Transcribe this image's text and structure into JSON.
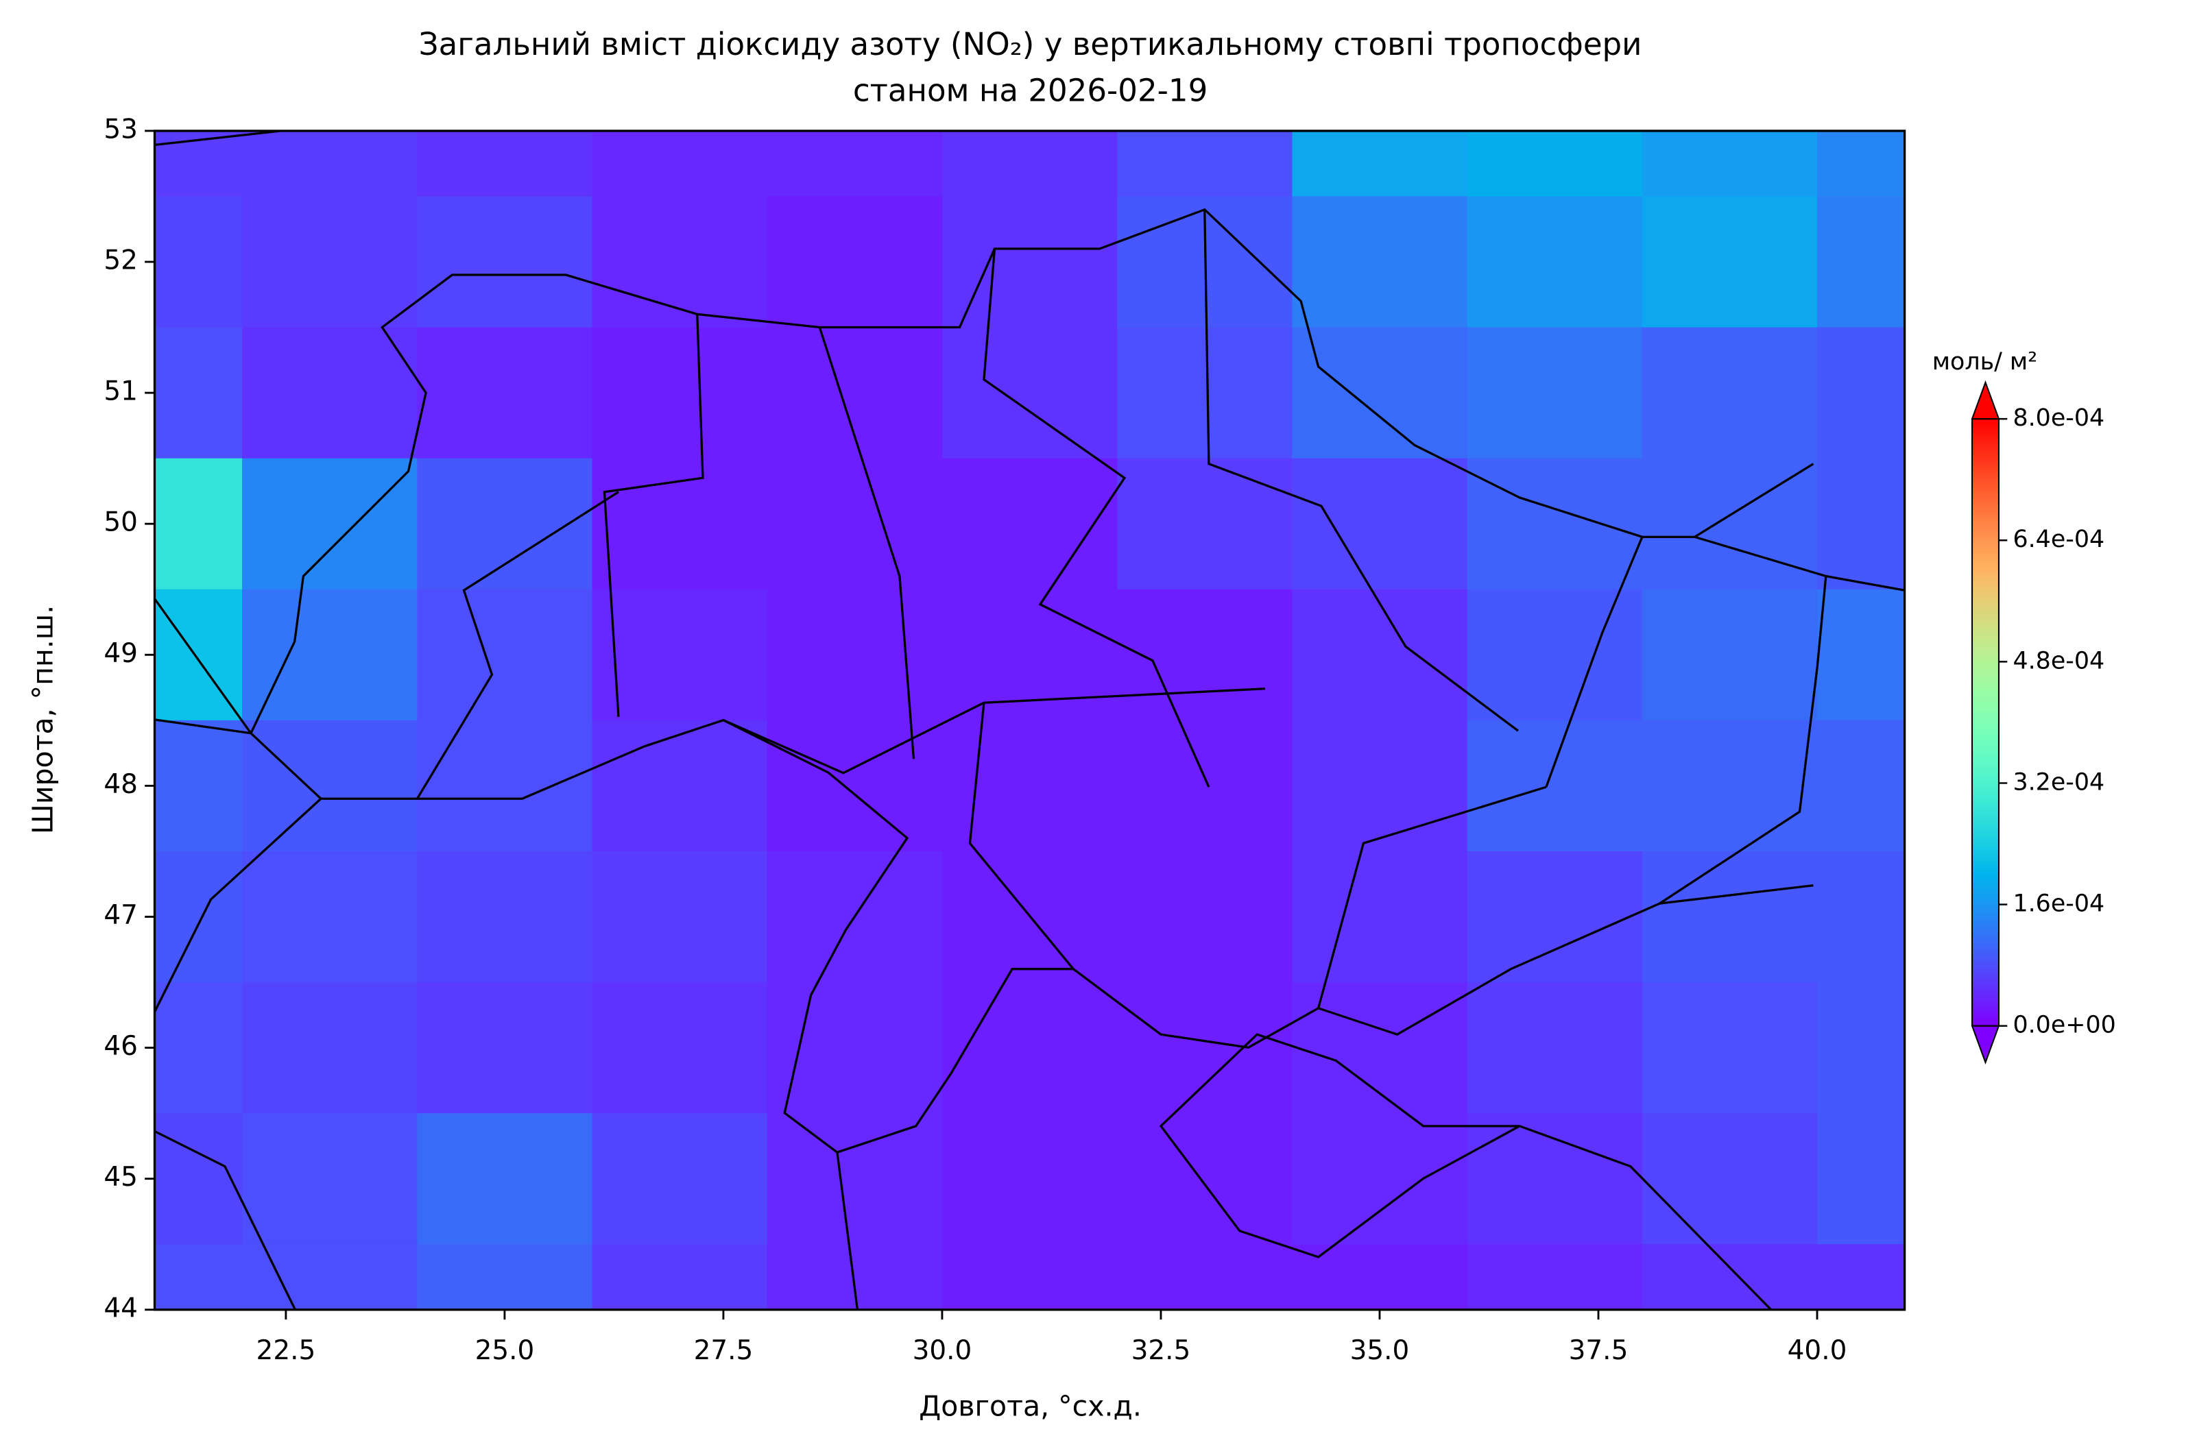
{
  "chart_data": {
    "type": "contour_map",
    "title": "Загальний вміст діоксиду азоту (NO₂) у вертикальному стовпі тропосфери",
    "subtitle": "станом на 2026-02-19",
    "x_label": "Довгота, °сх.д.",
    "y_label": "Широта, °пн.ш.",
    "xlim": [
      21,
      41
    ],
    "ylim": [
      44,
      53
    ],
    "xticks": [
      22.5,
      {
        "value": 25,
        "label": "25.0"
      },
      27.5,
      {
        "value": 30,
        "label": "30.0"
      },
      32.5,
      {
        "value": 35,
        "label": "35.0"
      },
      37.5,
      {
        "value": 40,
        "label": "40.0"
      }
    ],
    "yticks": [
      44,
      45,
      46,
      47,
      48,
      49,
      50,
      51,
      52,
      53
    ],
    "lons": [
      21,
      23,
      25,
      27,
      29,
      31,
      33,
      35,
      37,
      39,
      41
    ],
    "lats": [
      53,
      52,
      51,
      50,
      49,
      48,
      47,
      46,
      45,
      44
    ],
    "values": [
      [
        6e-05,
        6e-05,
        5e-05,
        4e-05,
        4e-05,
        5e-05,
        8e-05,
        0.00018,
        0.00019,
        0.00017,
        0.00014
      ],
      [
        7e-05,
        6e-05,
        7e-05,
        4e-05,
        3e-05,
        5e-05,
        9e-05,
        0.00013,
        0.00016,
        0.00018,
        0.00013
      ],
      [
        8e-05,
        5e-05,
        4e-05,
        3e-05,
        3e-05,
        5e-05,
        8e-05,
        0.00011,
        0.00012,
        0.0001,
        9e-05
      ],
      [
        0.00028,
        0.00014,
        9e-05,
        3e-05,
        3e-05,
        3e-05,
        6e-05,
        7e-05,
        0.0001,
        0.0001,
        9e-05
      ],
      [
        0.00022,
        0.00012,
        8e-05,
        4e-05,
        3e-05,
        3e-05,
        3e-05,
        5e-05,
        9e-05,
        0.00011,
        0.00012
      ],
      [
        0.0001,
        9e-05,
        8e-05,
        5e-05,
        3e-05,
        3e-05,
        3e-05,
        5e-05,
        0.0001,
        0.0001,
        0.0001
      ],
      [
        9e-05,
        8e-05,
        7e-05,
        6e-05,
        4e-05,
        3e-05,
        3e-05,
        5e-05,
        7e-05,
        9e-05,
        9e-05
      ],
      [
        8e-05,
        7e-05,
        6e-05,
        5e-05,
        4e-05,
        3e-05,
        3e-05,
        4e-05,
        6e-05,
        8e-05,
        9e-05
      ],
      [
        7e-05,
        8e-05,
        0.00011,
        7e-05,
        4e-05,
        3e-05,
        3e-05,
        4e-05,
        5e-05,
        7e-05,
        9e-05
      ],
      [
        8e-05,
        8e-05,
        0.0001,
        6e-05,
        4e-05,
        3e-05,
        3e-05,
        3e-05,
        4e-05,
        5e-05,
        5e-05
      ]
    ],
    "cmap": "rainbow",
    "colorbar": {
      "label": "моль/ м²",
      "lim": [
        0,
        0.0008
      ],
      "extend": "both",
      "ticks": [
        {
          "value": 0,
          "label": "0.0e+00"
        },
        {
          "value": 0.00016,
          "label": "1.6e-04"
        },
        {
          "value": 0.00032,
          "label": "3.2e-04"
        },
        {
          "value": 0.00048,
          "label": "4.8e-04"
        },
        {
          "value": 0.00064,
          "label": "6.4e-04"
        },
        {
          "value": 0.0008,
          "label": "8.0e-04"
        }
      ]
    }
  }
}
